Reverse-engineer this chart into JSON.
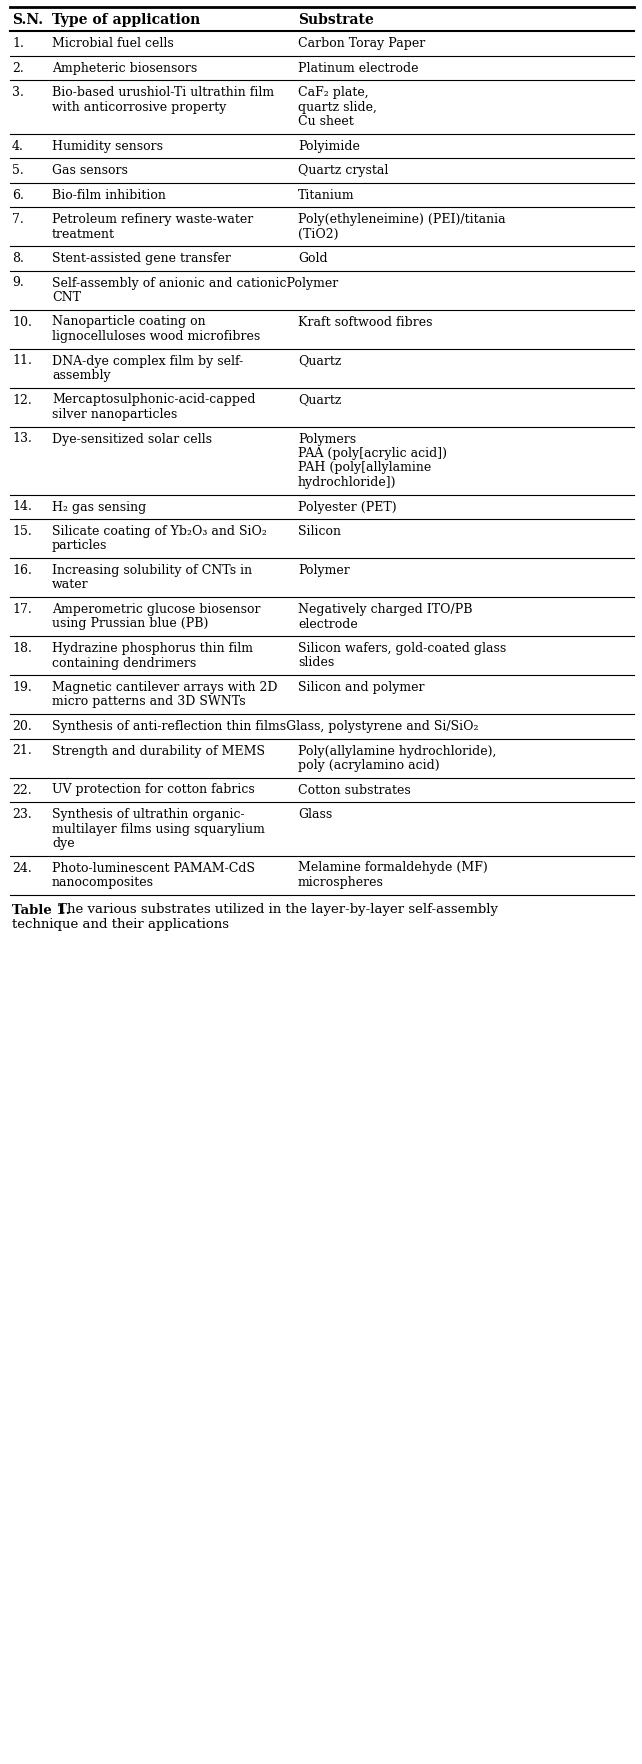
{
  "col1_header": "S.N.",
  "col2_header": "Type of application",
  "col3_header": "Substrate",
  "rows": [
    {
      "sn": "1.",
      "app": [
        "Microbial fuel cells"
      ],
      "sub": [
        "Carbon Toray Paper"
      ]
    },
    {
      "sn": "2.",
      "app": [
        "Ampheteric biosensors"
      ],
      "sub": [
        "Platinum electrode"
      ]
    },
    {
      "sn": "3.",
      "app": [
        "Bio-based urushiol-Ti ultrathin film",
        "with anticorrosive property"
      ],
      "sub": [
        "CaF₂ plate,",
        "quartz slide,",
        "Cu sheet"
      ]
    },
    {
      "sn": "4.",
      "app": [
        "Humidity sensors"
      ],
      "sub": [
        "Polyimide"
      ]
    },
    {
      "sn": "5.",
      "app": [
        "Gas sensors"
      ],
      "sub": [
        "Quartz crystal"
      ]
    },
    {
      "sn": "6.",
      "app": [
        "Bio-film inhibition"
      ],
      "sub": [
        "Titanium"
      ]
    },
    {
      "sn": "7.",
      "app": [
        "Petroleum refinery waste-water",
        "treatment"
      ],
      "sub": [
        "Poly(ethyleneimine) (PEI)/titania",
        "(TiO2)"
      ]
    },
    {
      "sn": "8.",
      "app": [
        "Stent-assisted gene transfer"
      ],
      "sub": [
        "Gold"
      ]
    },
    {
      "sn": "9.",
      "app": [
        "Self-assembly of anionic and cationicPolymer",
        "CNT"
      ],
      "sub": [],
      "special": true
    },
    {
      "sn": "10.",
      "app": [
        "Nanoparticle coating on",
        "lignocelluloses wood microfibres"
      ],
      "sub": [
        "Kraft softwood fibres"
      ]
    },
    {
      "sn": "11.",
      "app": [
        "DNA-dye complex film by self-",
        "assembly"
      ],
      "sub": [
        "Quartz"
      ]
    },
    {
      "sn": "12.",
      "app": [
        "Mercaptosulphonic-acid-capped",
        "silver nanoparticles"
      ],
      "sub": [
        "Quartz"
      ]
    },
    {
      "sn": "13.",
      "app": [
        "Dye-sensitized solar cells"
      ],
      "sub": [
        "Polymers",
        "PAA (poly[acrylic acid])",
        "PAH (poly[allylamine",
        "hydrochloride])"
      ]
    },
    {
      "sn": "14.",
      "app": [
        "H₂ gas sensing"
      ],
      "sub": [
        "Polyester (PET)"
      ]
    },
    {
      "sn": "15.",
      "app": [
        "Silicate coating of Yb₂O₃ and SiO₂",
        "particles"
      ],
      "sub": [
        "Silicon"
      ]
    },
    {
      "sn": "16.",
      "app": [
        "Increasing solubility of CNTs in",
        "water"
      ],
      "sub": [
        "Polymer"
      ]
    },
    {
      "sn": "17.",
      "app": [
        "Amperometric glucose biosensor",
        "using Prussian blue (PB)"
      ],
      "sub": [
        "Negatively charged ITO/PB",
        "electrode"
      ]
    },
    {
      "sn": "18.",
      "app": [
        "Hydrazine phosphorus thin film",
        "containing dendrimers"
      ],
      "sub": [
        "Silicon wafers, gold-coated glass",
        "slides"
      ]
    },
    {
      "sn": "19.",
      "app": [
        "Magnetic cantilever arrays with 2D",
        "micro patterns and 3D SWNTs"
      ],
      "sub": [
        "Silicon and polymer"
      ]
    },
    {
      "sn": "20.",
      "app": [
        "Synthesis of anti-reflection thin filmsGlass, polystyrene and Si/SiO₂"
      ],
      "sub": [],
      "special": true
    },
    {
      "sn": "21.",
      "app": [
        "Strength and durability of MEMS"
      ],
      "sub": [
        "Poly(allylamine hydrochloride),",
        "poly (acrylamino acid)"
      ]
    },
    {
      "sn": "22.",
      "app": [
        "UV protection for cotton fabrics"
      ],
      "sub": [
        "Cotton substrates"
      ]
    },
    {
      "sn": "23.",
      "app": [
        "Synthesis of ultrathin organic-",
        "multilayer films using squarylium",
        "dye"
      ],
      "sub": [
        "Glass"
      ]
    },
    {
      "sn": "24.",
      "app": [
        "Photo-luminescent PAMAM-CdS",
        "nanocomposites"
      ],
      "sub": [
        "Melamine formaldehyde (MF)",
        "microspheres"
      ]
    }
  ],
  "caption_bold": "Table 1.",
  "caption_normal": " The various substrates utilized in the layer-by-layer self-assembly technique and their applications",
  "bg_color": "#ffffff",
  "text_color": "#000000",
  "line_color": "#000000",
  "font_family": "DejaVu Serif",
  "font_size": 9.0,
  "header_font_size": 10.0
}
